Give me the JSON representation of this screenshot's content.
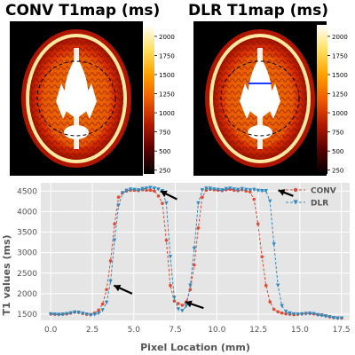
{
  "panels": {
    "left_title": "CONV T1map (ms)",
    "right_title": "DLR T1map (ms)",
    "colorbar_ticks": [
      2000,
      1750,
      1500,
      1250,
      1000,
      750,
      500,
      250
    ],
    "colorbar_range": [
      200,
      2150
    ],
    "colormap": [
      "#000000",
      "#5a0000",
      "#b51a00",
      "#f05a00",
      "#ffa000",
      "#ffe060",
      "#ffffff"
    ]
  },
  "chart_data": {
    "type": "line",
    "xlabel": "Pixel Location (mm)",
    "ylabel": "T1 values (ms)",
    "xlim": [
      -0.6,
      18.0
    ],
    "ylim": [
      1350,
      4700
    ],
    "xticks": [
      0.0,
      2.5,
      5.0,
      7.5,
      10.0,
      12.5,
      15.0,
      17.5
    ],
    "yticks": [
      1500,
      2000,
      2500,
      3000,
      3500,
      4000,
      4500
    ],
    "grid": true,
    "legend_position": "top-right",
    "series": [
      {
        "name": "CONV",
        "color": "#e24a33",
        "marker": "circle",
        "x": [
          0,
          0.24,
          0.48,
          0.72,
          0.96,
          1.2,
          1.44,
          1.68,
          1.92,
          2.16,
          2.4,
          2.64,
          2.88,
          3.12,
          3.36,
          3.6,
          3.84,
          4.08,
          4.32,
          4.56,
          4.8,
          5.04,
          5.28,
          5.52,
          5.76,
          6.0,
          6.24,
          6.48,
          6.72,
          6.96,
          7.2,
          7.44,
          7.68,
          7.92,
          8.16,
          8.4,
          8.64,
          8.88,
          9.12,
          9.36,
          9.6,
          9.84,
          10.08,
          10.32,
          10.56,
          10.8,
          11.04,
          11.28,
          11.52,
          11.76,
          12.0,
          12.24,
          12.48,
          12.72,
          12.96,
          13.2,
          13.44,
          13.68,
          13.92,
          14.16,
          14.4,
          14.64,
          14.88,
          15.12,
          15.36,
          15.6,
          15.84,
          16.08,
          16.32,
          16.56,
          16.8,
          17.04,
          17.28,
          17.52
        ],
        "y": [
          1510,
          1500,
          1495,
          1500,
          1510,
          1530,
          1550,
          1545,
          1520,
          1500,
          1490,
          1530,
          1600,
          1750,
          2100,
          2800,
          3700,
          4350,
          4460,
          4500,
          4520,
          4520,
          4510,
          4530,
          4520,
          4520,
          4500,
          4380,
          4200,
          3300,
          2200,
          1820,
          1760,
          1720,
          1800,
          2100,
          2700,
          3600,
          4350,
          4520,
          4540,
          4530,
          4520,
          4510,
          4530,
          4540,
          4520,
          4510,
          4530,
          4500,
          4480,
          4300,
          3700,
          2900,
          2200,
          1800,
          1620,
          1560,
          1530,
          1510,
          1500,
          1490,
          1500,
          1510,
          1520,
          1520,
          1510,
          1490,
          1480,
          1460,
          1440,
          1420,
          1410,
          1410
        ]
      },
      {
        "name": "DLR",
        "color": "#348abd",
        "marker": "triangle",
        "x": [
          0,
          0.24,
          0.48,
          0.72,
          0.96,
          1.2,
          1.44,
          1.68,
          1.92,
          2.16,
          2.4,
          2.64,
          2.88,
          3.12,
          3.36,
          3.6,
          3.84,
          4.08,
          4.32,
          4.56,
          4.8,
          5.04,
          5.28,
          5.52,
          5.76,
          6.0,
          6.24,
          6.48,
          6.72,
          6.96,
          7.2,
          7.44,
          7.68,
          7.92,
          8.16,
          8.4,
          8.64,
          8.88,
          9.12,
          9.36,
          9.6,
          9.84,
          10.08,
          10.32,
          10.56,
          10.8,
          11.04,
          11.28,
          11.52,
          11.76,
          12.0,
          12.24,
          12.48,
          12.72,
          12.96,
          13.2,
          13.44,
          13.68,
          13.92,
          14.16,
          14.4,
          14.64,
          14.88,
          15.12,
          15.36,
          15.6,
          15.84,
          16.08,
          16.32,
          16.56,
          16.8,
          17.04,
          17.28,
          17.52
        ],
        "y": [
          1500,
          1495,
          1490,
          1495,
          1505,
          1525,
          1545,
          1540,
          1515,
          1495,
          1480,
          1490,
          1520,
          1600,
          1780,
          2300,
          3300,
          4150,
          4450,
          4510,
          4540,
          4530,
          4520,
          4550,
          4560,
          4580,
          4560,
          4540,
          4500,
          4200,
          2900,
          1900,
          1620,
          1580,
          1700,
          2200,
          3100,
          4200,
          4520,
          4560,
          4560,
          4540,
          4530,
          4520,
          4550,
          4560,
          4540,
          4530,
          4550,
          4530,
          4520,
          4530,
          4510,
          4500,
          4500,
          4250,
          3200,
          2200,
          1700,
          1560,
          1520,
          1500,
          1495,
          1500,
          1510,
          1515,
          1505,
          1480,
          1470,
          1450,
          1430,
          1410,
          1400,
          1400
        ]
      }
    ],
    "annotations": [
      {
        "type": "arrow",
        "from": [
          4.9,
          2000
        ],
        "to": [
          3.8,
          2200
        ]
      },
      {
        "type": "arrow",
        "from": [
          7.6,
          4300
        ],
        "to": [
          6.6,
          4500
        ]
      },
      {
        "type": "arrow",
        "from": [
          9.2,
          1650
        ],
        "to": [
          8.1,
          1800
        ]
      },
      {
        "type": "arrow",
        "from": [
          14.6,
          4380
        ],
        "to": [
          13.7,
          4520
        ]
      }
    ]
  }
}
